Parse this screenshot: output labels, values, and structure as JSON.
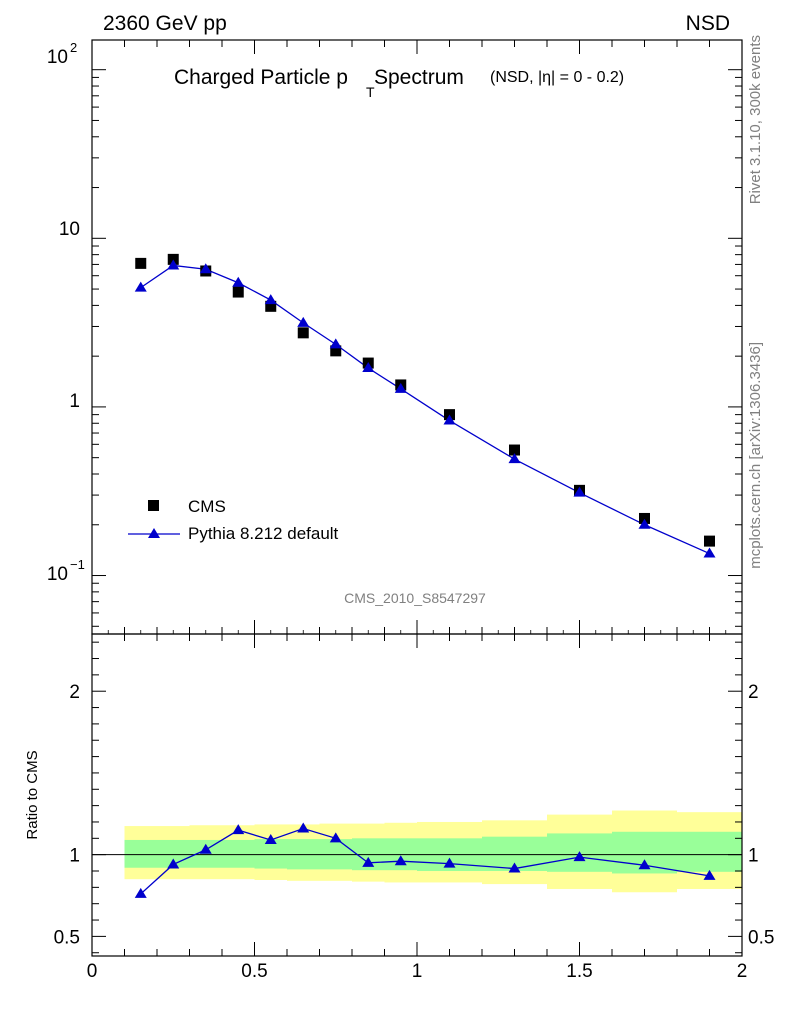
{
  "header": {
    "energy_label": "2360 GeV pp",
    "process_label": "NSD"
  },
  "side_text": {
    "rivet": "Rivet 3.1.10,  300k events",
    "mcplots": "mcplots.cern.ch [arXiv:1306.3436]"
  },
  "analysis_id": "CMS_2010_S8547297",
  "title": {
    "main_prefix": "Charged Particle p",
    "main_sub": "T",
    "main_suffix": " Spectrum",
    "cut": "(NSD, |η| =    0 - 0.2)"
  },
  "legend": {
    "data_label": "CMS",
    "mc_label": "Pythia 8.212 default"
  },
  "ratio_ylabel": "Ratio to CMS",
  "colors": {
    "data": "#000000",
    "mc": "#0000cc",
    "band_inner": "#99ff99",
    "band_outer": "#ffff99",
    "side_text": "#808080"
  },
  "chart_data": {
    "type": "scatter",
    "x_range": [
      0,
      2
    ],
    "main": {
      "yscale": "log",
      "ylim": [
        0.045,
        150
      ],
      "y_tick_labels": [
        "10",
        "1"
      ],
      "y_tick_exp_labels": [
        {
          "base": "10",
          "exp": "2"
        },
        {
          "base": "10",
          "exp": "−1"
        }
      ]
    },
    "ratio": {
      "ylim": [
        0.38,
        2.35
      ],
      "y_tick_labels": [
        "0.5",
        "1",
        "2"
      ]
    },
    "x_tick_labels": [
      "0",
      "0.5",
      "1",
      "1.5",
      "2"
    ],
    "bins": [
      [
        0.1,
        0.2
      ],
      [
        0.2,
        0.3
      ],
      [
        0.3,
        0.4
      ],
      [
        0.4,
        0.5
      ],
      [
        0.5,
        0.6
      ],
      [
        0.6,
        0.7
      ],
      [
        0.7,
        0.8
      ],
      [
        0.8,
        0.9
      ],
      [
        0.9,
        1.0
      ],
      [
        1.0,
        1.2
      ],
      [
        1.2,
        1.4
      ],
      [
        1.4,
        1.6
      ],
      [
        1.6,
        1.8
      ],
      [
        1.8,
        2.0
      ]
    ],
    "x": [
      0.15,
      0.25,
      0.35,
      0.45,
      0.55,
      0.65,
      0.75,
      0.85,
      0.95,
      1.1,
      1.3,
      1.5,
      1.7,
      1.9
    ],
    "series": [
      {
        "name": "CMS",
        "values": [
          7.1,
          7.5,
          6.4,
          4.8,
          3.95,
          2.75,
          2.15,
          1.82,
          1.35,
          0.9,
          0.555,
          0.32,
          0.218,
          0.16
        ]
      },
      {
        "name": "Pythia 8.212 default",
        "values": [
          5.1,
          6.9,
          6.55,
          5.45,
          4.3,
          3.15,
          2.35,
          1.7,
          1.28,
          0.83,
          0.49,
          0.31,
          0.2,
          0.135
        ]
      }
    ],
    "ratio_values": [
      0.76,
      0.94,
      1.03,
      1.15,
      1.09,
      1.16,
      1.1,
      0.95,
      0.96,
      0.945,
      0.915,
      0.985,
      0.935,
      0.87
    ],
    "band_inner": [
      [
        0.92,
        1.09
      ],
      [
        0.92,
        1.09
      ],
      [
        0.92,
        1.09
      ],
      [
        0.92,
        1.09
      ],
      [
        0.915,
        1.095
      ],
      [
        0.91,
        1.095
      ],
      [
        0.91,
        1.095
      ],
      [
        0.905,
        1.1
      ],
      [
        0.905,
        1.1
      ],
      [
        0.9,
        1.1
      ],
      [
        0.9,
        1.11
      ],
      [
        0.895,
        1.13
      ],
      [
        0.885,
        1.14
      ],
      [
        0.895,
        1.14
      ]
    ],
    "band_outer": [
      [
        0.85,
        1.175
      ],
      [
        0.85,
        1.175
      ],
      [
        0.85,
        1.18
      ],
      [
        0.85,
        1.18
      ],
      [
        0.845,
        1.185
      ],
      [
        0.84,
        1.185
      ],
      [
        0.84,
        1.19
      ],
      [
        0.835,
        1.19
      ],
      [
        0.83,
        1.195
      ],
      [
        0.83,
        1.2
      ],
      [
        0.82,
        1.21
      ],
      [
        0.79,
        1.245
      ],
      [
        0.77,
        1.27
      ],
      [
        0.79,
        1.26
      ]
    ]
  }
}
